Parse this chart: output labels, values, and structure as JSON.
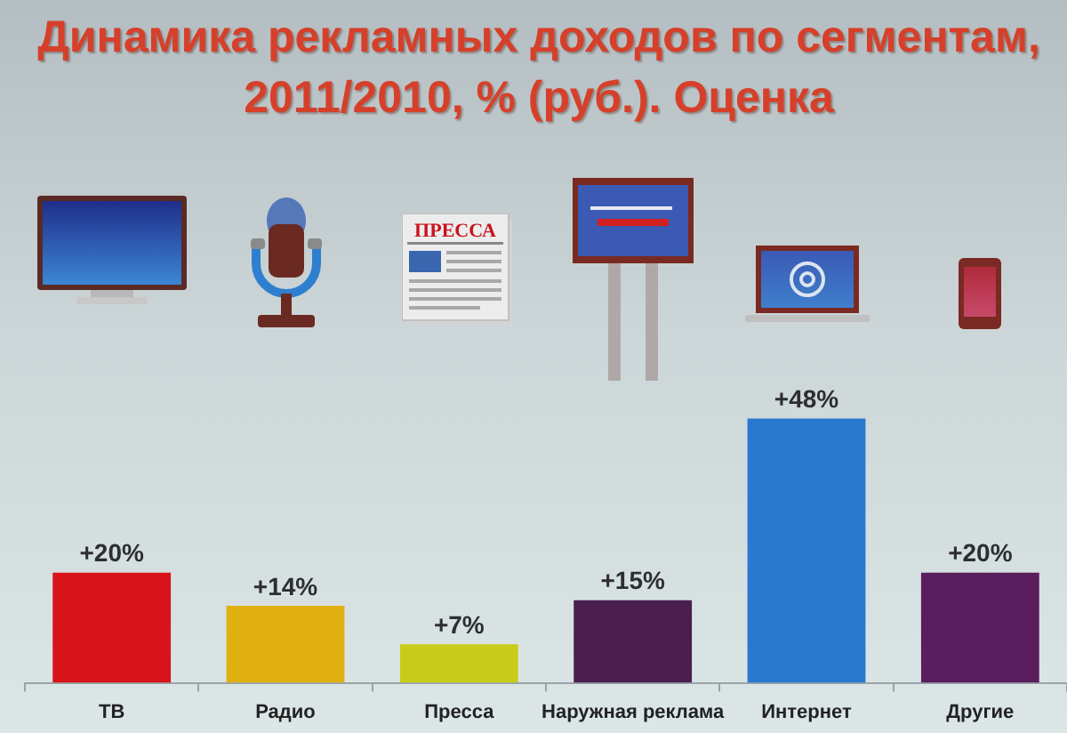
{
  "chart_data": {
    "type": "bar",
    "title": "Динамика рекламных доходов по сегментам, 2011/2010, % (руб.). Оценка",
    "categories": [
      "ТВ",
      "Радио",
      "Пресса",
      "Наружная реклама",
      "Интернет",
      "Другие"
    ],
    "values": [
      20,
      14,
      7,
      15,
      48,
      20
    ],
    "colors": [
      "#d8141a",
      "#e0b010",
      "#c8cc18",
      "#4a1e4e",
      "#2a78d0",
      "#5a1e5e"
    ],
    "value_labels": [
      "+20%",
      "+14%",
      "+7%",
      "+15%",
      "+48%",
      "+20%"
    ],
    "annotations": [
      "ПРЕССА"
    ]
  }
}
